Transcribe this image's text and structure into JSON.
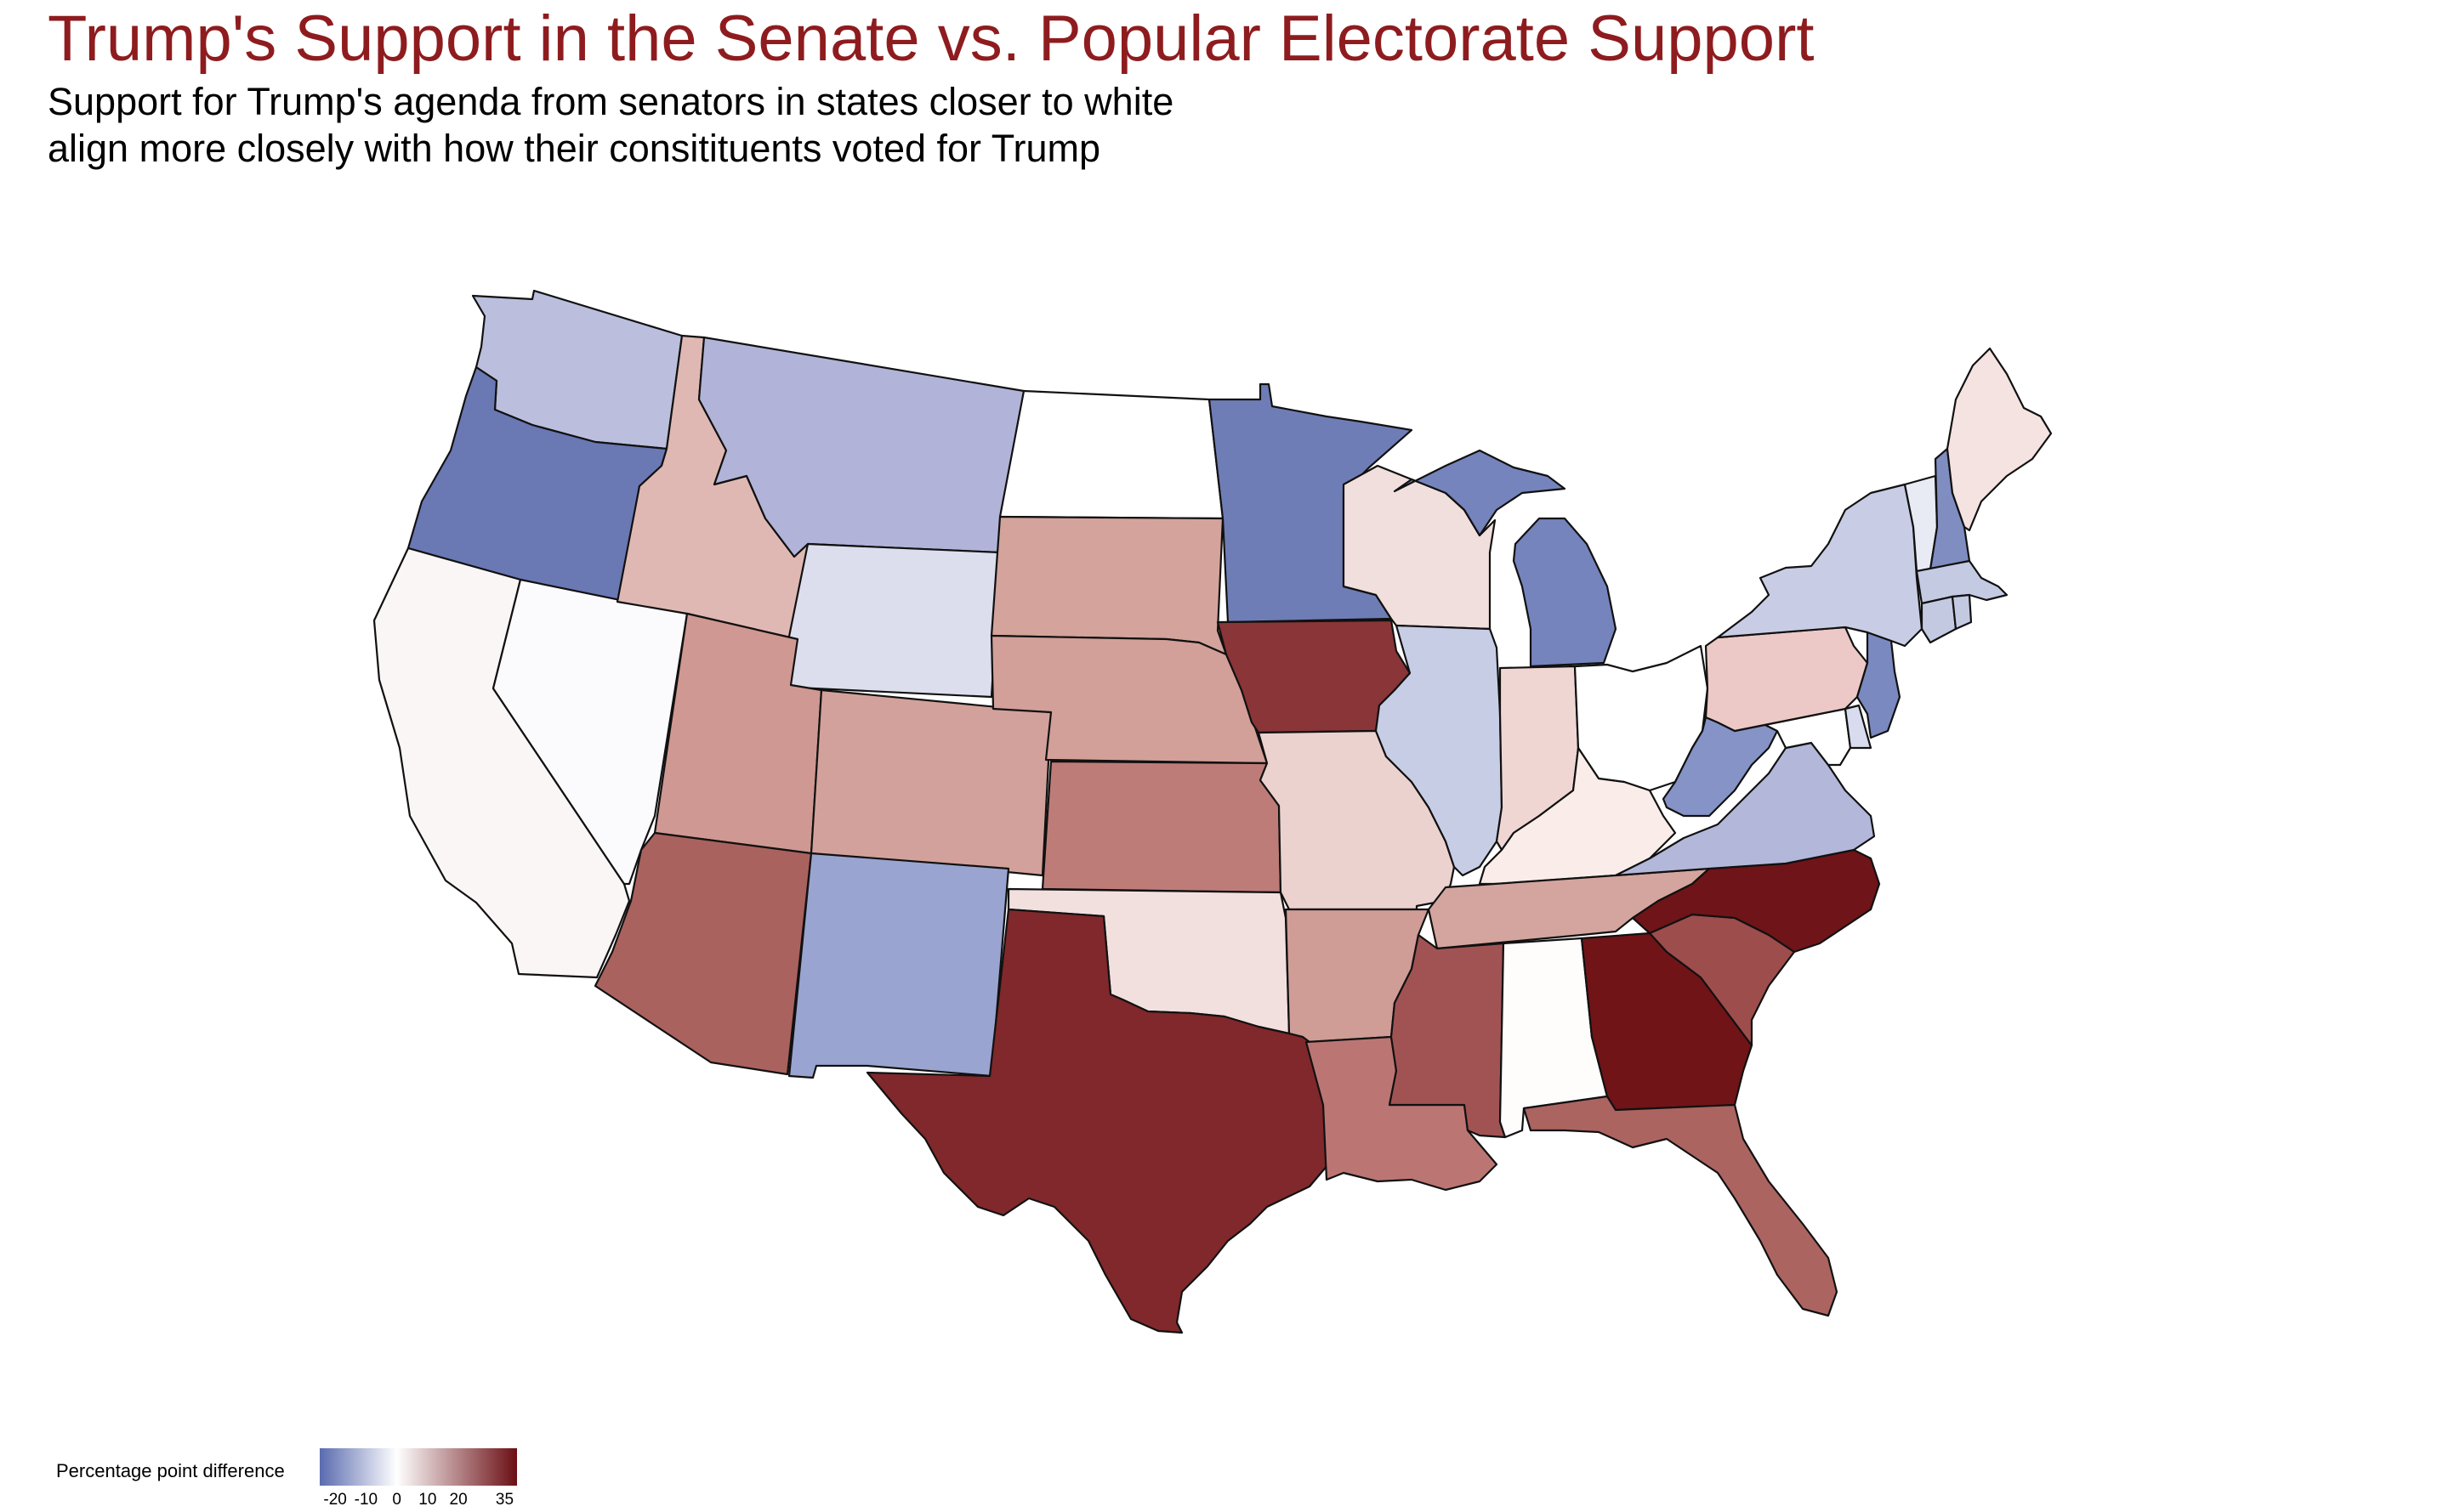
{
  "title": "Trump's Support in the Senate vs. Popular Electorate Support",
  "subtitle": [
    "Support for Trump's agenda from senators in states closer to white",
    "align more closely with how their consitituents voted for Trump"
  ],
  "legend": {
    "title": "Percentage point difference",
    "ticks": [
      "-20",
      "-10",
      "0",
      "10",
      "20",
      "35"
    ],
    "tick_values": [
      -20,
      -10,
      0,
      10,
      20,
      35
    ],
    "range": [
      -25,
      39
    ],
    "colors": {
      "low": "#5a6baf",
      "mid": "#ffffff",
      "high": "#6b0f14"
    }
  },
  "states": [
    {
      "abbr": "WA",
      "color": "#bbbfdd"
    },
    {
      "abbr": "OR",
      "color": "#6a78b4"
    },
    {
      "abbr": "CA",
      "color": "#faf6f5"
    },
    {
      "abbr": "NV",
      "color": "#fbfbfe"
    },
    {
      "abbr": "ID",
      "color": "#e0b8b3"
    },
    {
      "abbr": "MT",
      "color": "#b1b4d8"
    },
    {
      "abbr": "WY",
      "color": "#dcdeee"
    },
    {
      "abbr": "UT",
      "color": "#cf9892"
    },
    {
      "abbr": "AZ",
      "color": "#aa625f"
    },
    {
      "abbr": "CO",
      "color": "#d3a19b"
    },
    {
      "abbr": "NM",
      "color": "#9aa4d0"
    },
    {
      "abbr": "ND",
      "color": "#ffffff"
    },
    {
      "abbr": "SD",
      "color": "#d3a39c"
    },
    {
      "abbr": "NE",
      "color": "#d29f99"
    },
    {
      "abbr": "KS",
      "color": "#be7c78"
    },
    {
      "abbr": "OK",
      "color": "#f2e0df"
    },
    {
      "abbr": "TX",
      "color": "#80282b"
    },
    {
      "abbr": "MN",
      "color": "#6f7db6"
    },
    {
      "abbr": "IA",
      "color": "#8a3538"
    },
    {
      "abbr": "MO",
      "color": "#ebd2cf"
    },
    {
      "abbr": "AR",
      "color": "#cf9c96"
    },
    {
      "abbr": "LA",
      "color": "#bb7674"
    },
    {
      "abbr": "WI",
      "color": "#f1dfdd"
    },
    {
      "abbr": "IL",
      "color": "#c8cde6"
    },
    {
      "abbr": "MI",
      "color": "#7584bc"
    },
    {
      "abbr": "IN",
      "color": "#efd6d3"
    },
    {
      "abbr": "OH",
      "color": "#ffffff"
    },
    {
      "abbr": "KY",
      "color": "#faede9"
    },
    {
      "abbr": "TN",
      "color": "#d4a59e"
    },
    {
      "abbr": "MS",
      "color": "#a15354"
    },
    {
      "abbr": "AL",
      "color": "#fffcfc"
    },
    {
      "abbr": "GA",
      "color": "#701418"
    },
    {
      "abbr": "FL",
      "color": "#ac6461"
    },
    {
      "abbr": "SC",
      "color": "#9d4d4c"
    },
    {
      "abbr": "NC",
      "color": "#6f1419"
    },
    {
      "abbr": "VA",
      "color": "#b3b7d9"
    },
    {
      "abbr": "WV",
      "color": "#8693c6"
    },
    {
      "abbr": "PA",
      "color": "#ecc9c6"
    },
    {
      "abbr": "NY",
      "color": "#c8cde5"
    },
    {
      "abbr": "VT",
      "color": "#e8eaf4"
    },
    {
      "abbr": "NH",
      "color": "#7f8dc1"
    },
    {
      "abbr": "ME",
      "color": "#f5e3e1"
    },
    {
      "abbr": "MA",
      "color": "#c5cae3"
    },
    {
      "abbr": "CT",
      "color": "#c4c9e2"
    },
    {
      "abbr": "RI",
      "color": "#c4c9e2"
    },
    {
      "abbr": "NJ",
      "color": "#7a89bf"
    },
    {
      "abbr": "DE",
      "color": "#d9dcee"
    },
    {
      "abbr": "MD",
      "color": "#ffffff"
    }
  ]
}
